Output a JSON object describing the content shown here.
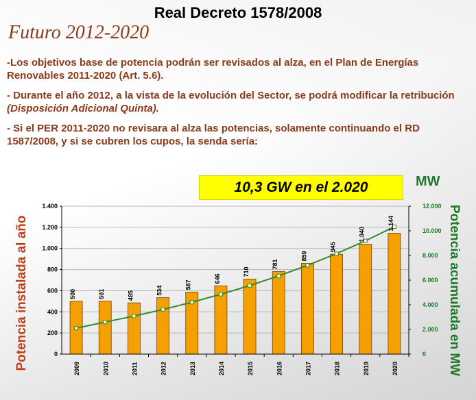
{
  "header": {
    "title": "Real Decreto 1578/2008",
    "subtitle": "Futuro 2012-2020"
  },
  "body": {
    "p1": "-Los objetivos base de potencia podrán ser revisados al alza, en el Plan de Energías Renovables 2011-2020 (Art. 5.6).",
    "p2_main": "- Durante el año 2012, a la vista de la evolución del Sector, se podrá modificar la retribución ",
    "p2_em": "(Disposición Adicional Quinta).",
    "p3": "- Si el PER 2011-2020 no revisara al alza las potencias, solamente continuando el RD 1587/2008, y si se cubren los cupos, la senda sería:"
  },
  "colors": {
    "text_brown": "#8b3a1a",
    "left_axis": "#c0401a",
    "right_axis": "#1e7a2a",
    "bar_fill": "#f5a000",
    "bar_stroke": "#6b4000",
    "line": "#2e8b2e",
    "highlight": "#ffff00"
  },
  "chart_data": {
    "type": "bar",
    "title": "10,3 GW en el 2.020",
    "categories": [
      "2009",
      "2010",
      "2011",
      "2012",
      "2013",
      "2014",
      "2015",
      "2016",
      "2017",
      "2018",
      "2019",
      "2020"
    ],
    "series": [
      {
        "axis": "left",
        "type": "bar",
        "values": [
          500,
          501,
          485,
          534,
          587,
          646,
          710,
          781,
          859,
          945,
          1040,
          1144
        ],
        "labels": [
          "500",
          "501",
          "485",
          "534",
          "587",
          "646",
          "710",
          "781",
          "859",
          "945",
          "1.040",
          "1.144"
        ]
      },
      {
        "axis": "right",
        "type": "line",
        "values": [
          2100,
          2601,
          3086,
          3620,
          4207,
          4853,
          5563,
          6344,
          7203,
          8148,
          9188,
          10332
        ]
      }
    ],
    "ylabel": "Potencia instalada al año",
    "ylabel_right": "Potencia acumulada en MW",
    "ylabel_right_unit": "MW",
    "ylim": [
      0,
      1400
    ],
    "ylim_right": [
      0,
      12000
    ],
    "yticks": [
      0,
      200,
      400,
      600,
      800,
      1000,
      1200,
      1400
    ],
    "ytick_labels": [
      "0",
      "200",
      "400",
      "600",
      "800",
      "1.000",
      "1.200",
      "1.400"
    ],
    "yticks_right": [
      0,
      2000,
      4000,
      6000,
      8000,
      10000,
      12000
    ],
    "ytick_labels_right": [
      "0",
      "2.000",
      "4.000",
      "6.000",
      "8.000",
      "10.000",
      "12.000"
    ],
    "grid": true
  }
}
